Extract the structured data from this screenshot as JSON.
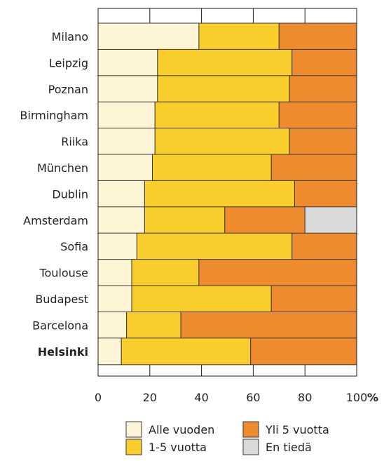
{
  "chart_data": {
    "type": "bar",
    "orientation": "horizontal",
    "stacked": true,
    "categories": [
      "Milano",
      "Leipzig",
      "Poznan",
      "Birmingham",
      "Riika",
      "München",
      "Dublin",
      "Amsterdam",
      "Sofia",
      "Toulouse",
      "Budapest",
      "Barcelona",
      "Helsinki"
    ],
    "highlight_category": "Helsinki",
    "series": [
      {
        "name": "Alle vuoden",
        "color": "#FDF5D5",
        "values": [
          39,
          23,
          23,
          22,
          22,
          21,
          18,
          18,
          15,
          13,
          13,
          11,
          9
        ]
      },
      {
        "name": "1-5 vuotta",
        "color": "#F9CD2B",
        "values": [
          31,
          52,
          51,
          48,
          52,
          46,
          58,
          31,
          60,
          26,
          54,
          21,
          50
        ]
      },
      {
        "name": "Yli 5 vuotta",
        "color": "#EE8B2E",
        "values": [
          30,
          25,
          26,
          30,
          26,
          33,
          24,
          31,
          25,
          61,
          33,
          68,
          41
        ]
      },
      {
        "name": "En tiedä",
        "color": "#DADADA",
        "values": [
          0,
          0,
          0,
          0,
          0,
          0,
          0,
          20,
          0,
          0,
          0,
          0,
          0
        ]
      }
    ],
    "x_ticks": [
      "0",
      "20",
      "40",
      "60",
      "80",
      "100"
    ],
    "x_unit": "%",
    "xlim": [
      0,
      100
    ],
    "grid": true,
    "legend_position": "bottom"
  }
}
